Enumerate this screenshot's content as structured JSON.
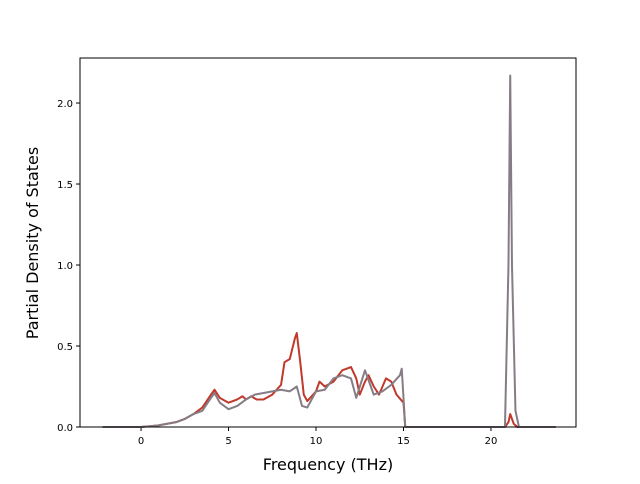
{
  "chart_data": {
    "type": "line",
    "xlabel": "Frequency (THz)",
    "ylabel": "Partial Density of States",
    "xlim": [
      -3.49,
      24.86
    ],
    "ylim": [
      0,
      2.278
    ],
    "xticks": [
      0,
      5,
      10,
      15,
      20
    ],
    "yticks": [
      {
        "value": 0,
        "label": "0.0"
      },
      0.5,
      {
        "value": 1,
        "label": "1.0"
      },
      1.5,
      {
        "value": 2,
        "label": "2.0"
      }
    ],
    "series": [
      {
        "color": "#c0392b",
        "x": [
          -2.2,
          -1,
          0,
          0.5,
          1,
          1.5,
          2,
          2.5,
          3,
          3.5,
          4,
          4.2,
          4.5,
          5,
          5.5,
          5.8,
          6,
          6.3,
          6.6,
          7,
          7.5,
          8,
          8.2,
          8.5,
          8.8,
          8.9,
          9.1,
          9.3,
          9.5,
          10,
          10.2,
          10.5,
          11,
          11.5,
          12,
          12.3,
          12.5,
          12.8,
          13,
          13.3,
          13.6,
          14,
          14.3,
          14.6,
          15,
          15.1,
          16,
          20.8,
          21,
          21.1,
          21.3,
          21.5,
          23.7
        ],
        "values": [
          0,
          0,
          0,
          0.005,
          0.01,
          0.02,
          0.03,
          0.05,
          0.08,
          0.12,
          0.2,
          0.23,
          0.18,
          0.15,
          0.17,
          0.19,
          0.17,
          0.19,
          0.17,
          0.17,
          0.2,
          0.26,
          0.4,
          0.42,
          0.55,
          0.58,
          0.4,
          0.2,
          0.16,
          0.22,
          0.28,
          0.25,
          0.28,
          0.35,
          0.37,
          0.3,
          0.2,
          0.28,
          0.32,
          0.25,
          0.2,
          0.3,
          0.28,
          0.2,
          0.15,
          0,
          0,
          0,
          0.03,
          0.08,
          0.02,
          0,
          0
        ]
      },
      {
        "color": "#857c86",
        "x": [
          -2.2,
          0,
          0.5,
          1,
          1.5,
          2,
          2.5,
          3,
          3.5,
          4,
          4.2,
          4.5,
          5,
          5.5,
          6,
          6.5,
          7,
          7.5,
          8,
          8.5,
          8.9,
          9.2,
          9.5,
          10,
          10.5,
          11,
          11.5,
          12,
          12.3,
          12.8,
          13.3,
          13.8,
          14.3,
          14.8,
          14.9,
          15.1,
          20.8,
          21,
          21.1,
          21.2,
          21.4,
          21.6,
          23.7
        ],
        "values": [
          0,
          0,
          0.005,
          0.01,
          0.02,
          0.03,
          0.05,
          0.08,
          0.1,
          0.18,
          0.21,
          0.15,
          0.11,
          0.13,
          0.17,
          0.2,
          0.21,
          0.22,
          0.23,
          0.22,
          0.25,
          0.13,
          0.12,
          0.22,
          0.23,
          0.3,
          0.32,
          0.3,
          0.18,
          0.35,
          0.2,
          0.22,
          0.26,
          0.32,
          0.36,
          0,
          0,
          1.0,
          2.17,
          1.0,
          0.1,
          0,
          0
        ]
      }
    ]
  }
}
